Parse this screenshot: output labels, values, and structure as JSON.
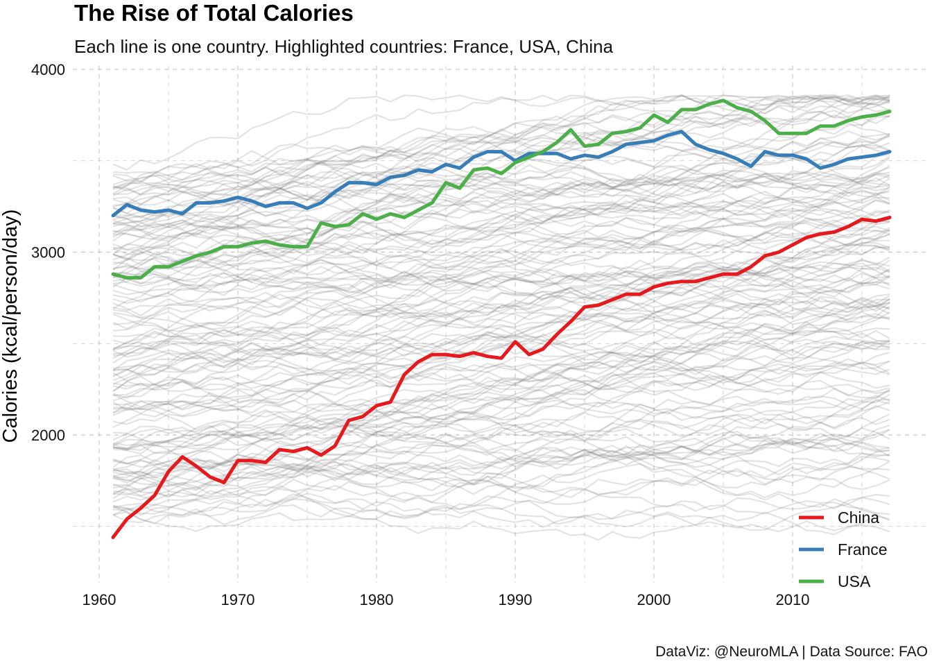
{
  "header": {
    "title": "The Rise of Total Calories",
    "subtitle": "Each line is one country. Highlighted countries: France, USA, China"
  },
  "caption": "DataViz: @NeuroMLA | Data Source: FAO",
  "colors": {
    "China": "#E41A1C",
    "France": "#377EB8",
    "USA": "#4DAF4A",
    "background_lines": "#808080",
    "grid": "#c8c8c8"
  },
  "chart_data": {
    "type": "line",
    "title": "The Rise of Total Calories",
    "subtitle": "Each line is one country. Highlighted countries: France, USA, China",
    "xlabel": "",
    "ylabel": "Calories (kcal/person/day)",
    "xlim": [
      1961,
      2017
    ],
    "ylim": [
      1300,
      4000
    ],
    "x_ticks": [
      1960,
      1970,
      1980,
      1990,
      2000,
      2010
    ],
    "y_ticks": [
      2000,
      3000,
      4000
    ],
    "grid": true,
    "legend_position": "bottom-right",
    "years": [
      1961,
      1962,
      1963,
      1964,
      1965,
      1966,
      1967,
      1968,
      1969,
      1970,
      1971,
      1972,
      1973,
      1974,
      1975,
      1976,
      1977,
      1978,
      1979,
      1980,
      1981,
      1982,
      1983,
      1984,
      1985,
      1986,
      1987,
      1988,
      1989,
      1990,
      1991,
      1992,
      1993,
      1994,
      1995,
      1996,
      1997,
      1998,
      1999,
      2000,
      2001,
      2002,
      2003,
      2004,
      2005,
      2006,
      2007,
      2008,
      2009,
      2010,
      2011,
      2012,
      2013,
      2014,
      2015,
      2016,
      2017
    ],
    "series": [
      {
        "name": "China",
        "values": [
          1440,
          1540,
          1600,
          1670,
          1800,
          1880,
          1830,
          1770,
          1740,
          1860,
          1860,
          1850,
          1920,
          1910,
          1930,
          1890,
          1940,
          2080,
          2100,
          2160,
          2180,
          2330,
          2400,
          2440,
          2440,
          2430,
          2450,
          2430,
          2420,
          2510,
          2440,
          2470,
          2550,
          2620,
          2700,
          2710,
          2740,
          2770,
          2770,
          2810,
          2830,
          2840,
          2840,
          2860,
          2880,
          2880,
          2920,
          2980,
          3000,
          3040,
          3080,
          3100,
          3110,
          3140,
          3180,
          3170,
          3190
        ]
      },
      {
        "name": "France",
        "values": [
          3200,
          3260,
          3230,
          3220,
          3230,
          3210,
          3270,
          3270,
          3280,
          3300,
          3280,
          3250,
          3270,
          3270,
          3240,
          3270,
          3330,
          3380,
          3380,
          3370,
          3410,
          3420,
          3450,
          3440,
          3480,
          3460,
          3520,
          3550,
          3550,
          3500,
          3540,
          3540,
          3540,
          3510,
          3530,
          3520,
          3550,
          3590,
          3600,
          3610,
          3640,
          3660,
          3590,
          3560,
          3540,
          3510,
          3470,
          3550,
          3530,
          3530,
          3510,
          3460,
          3480,
          3510,
          3520,
          3530,
          3550
        ]
      },
      {
        "name": "USA",
        "values": [
          2880,
          2860,
          2860,
          2920,
          2920,
          2950,
          2980,
          3000,
          3030,
          3030,
          3050,
          3060,
          3040,
          3030,
          3030,
          3160,
          3140,
          3150,
          3210,
          3180,
          3210,
          3190,
          3230,
          3270,
          3380,
          3350,
          3450,
          3460,
          3430,
          3490,
          3520,
          3550,
          3600,
          3670,
          3580,
          3590,
          3650,
          3660,
          3680,
          3750,
          3710,
          3780,
          3780,
          3810,
          3830,
          3790,
          3770,
          3720,
          3650,
          3650,
          3650,
          3690,
          3690,
          3720,
          3740,
          3750,
          3770
        ]
      }
    ]
  }
}
